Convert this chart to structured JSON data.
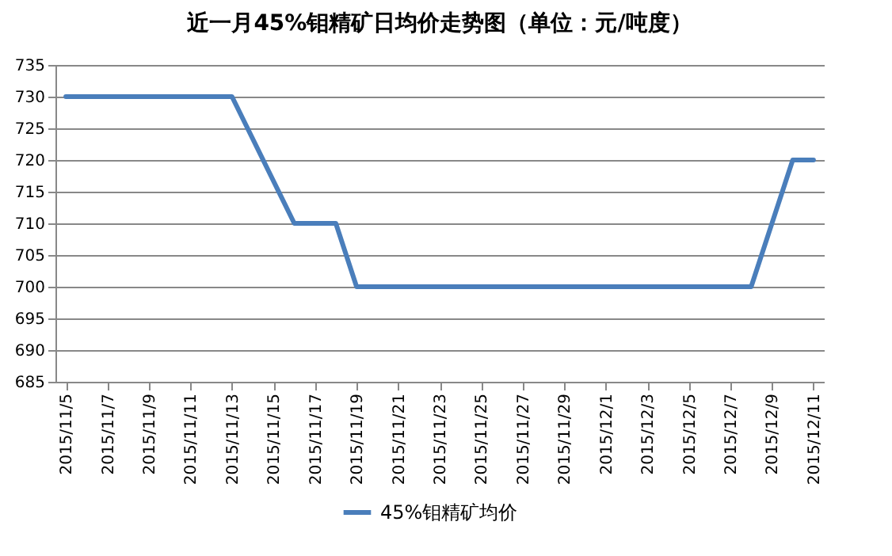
{
  "chart_data": {
    "type": "line",
    "title": "近一月45%钼精矿日均价走势图（单位：元/吨度）",
    "x": [
      "2015-11-05",
      "2015-11-13",
      "2015-11-16",
      "2015-11-18",
      "2015-11-19",
      "2015-12-08",
      "2015-12-10",
      "2015-12-11"
    ],
    "series": [
      {
        "name": "45%钼精矿均价",
        "color": "#4a7ebb",
        "values": [
          730,
          730,
          710,
          710,
          700,
          700,
          720,
          720
        ]
      }
    ],
    "xlim": [
      "2015-11-04T12:00",
      "2015-12-11T12:00"
    ],
    "xticks": [
      {
        "value": "2015-11-05",
        "label": "2015/11/5"
      },
      {
        "value": "2015-11-07",
        "label": "2015/11/7"
      },
      {
        "value": "2015-11-09",
        "label": "2015/11/9"
      },
      {
        "value": "2015-11-11",
        "label": "2015/11/11"
      },
      {
        "value": "2015-11-13",
        "label": "2015/11/13"
      },
      {
        "value": "2015-11-15",
        "label": "2015/11/15"
      },
      {
        "value": "2015-11-17",
        "label": "2015/11/17"
      },
      {
        "value": "2015-11-19",
        "label": "2015/11/19"
      },
      {
        "value": "2015-11-21",
        "label": "2015/11/21"
      },
      {
        "value": "2015-11-23",
        "label": "2015/11/23"
      },
      {
        "value": "2015-11-25",
        "label": "2015/11/25"
      },
      {
        "value": "2015-11-27",
        "label": "2015/11/27"
      },
      {
        "value": "2015-11-29",
        "label": "2015/11/29"
      },
      {
        "value": "2015-12-01",
        "label": "2015/12/1"
      },
      {
        "value": "2015-12-03",
        "label": "2015/12/3"
      },
      {
        "value": "2015-12-05",
        "label": "2015/12/5"
      },
      {
        "value": "2015-12-07",
        "label": "2015/12/7"
      },
      {
        "value": "2015-12-09",
        "label": "2015/12/9"
      },
      {
        "value": "2015-12-11",
        "label": "2015/12/11"
      }
    ],
    "ylim": [
      685,
      735
    ],
    "yticks": [
      685,
      690,
      695,
      700,
      705,
      710,
      715,
      720,
      725,
      730,
      735
    ],
    "grid": "y",
    "legend": "bottom",
    "marker": "none",
    "line_style": "solid"
  }
}
